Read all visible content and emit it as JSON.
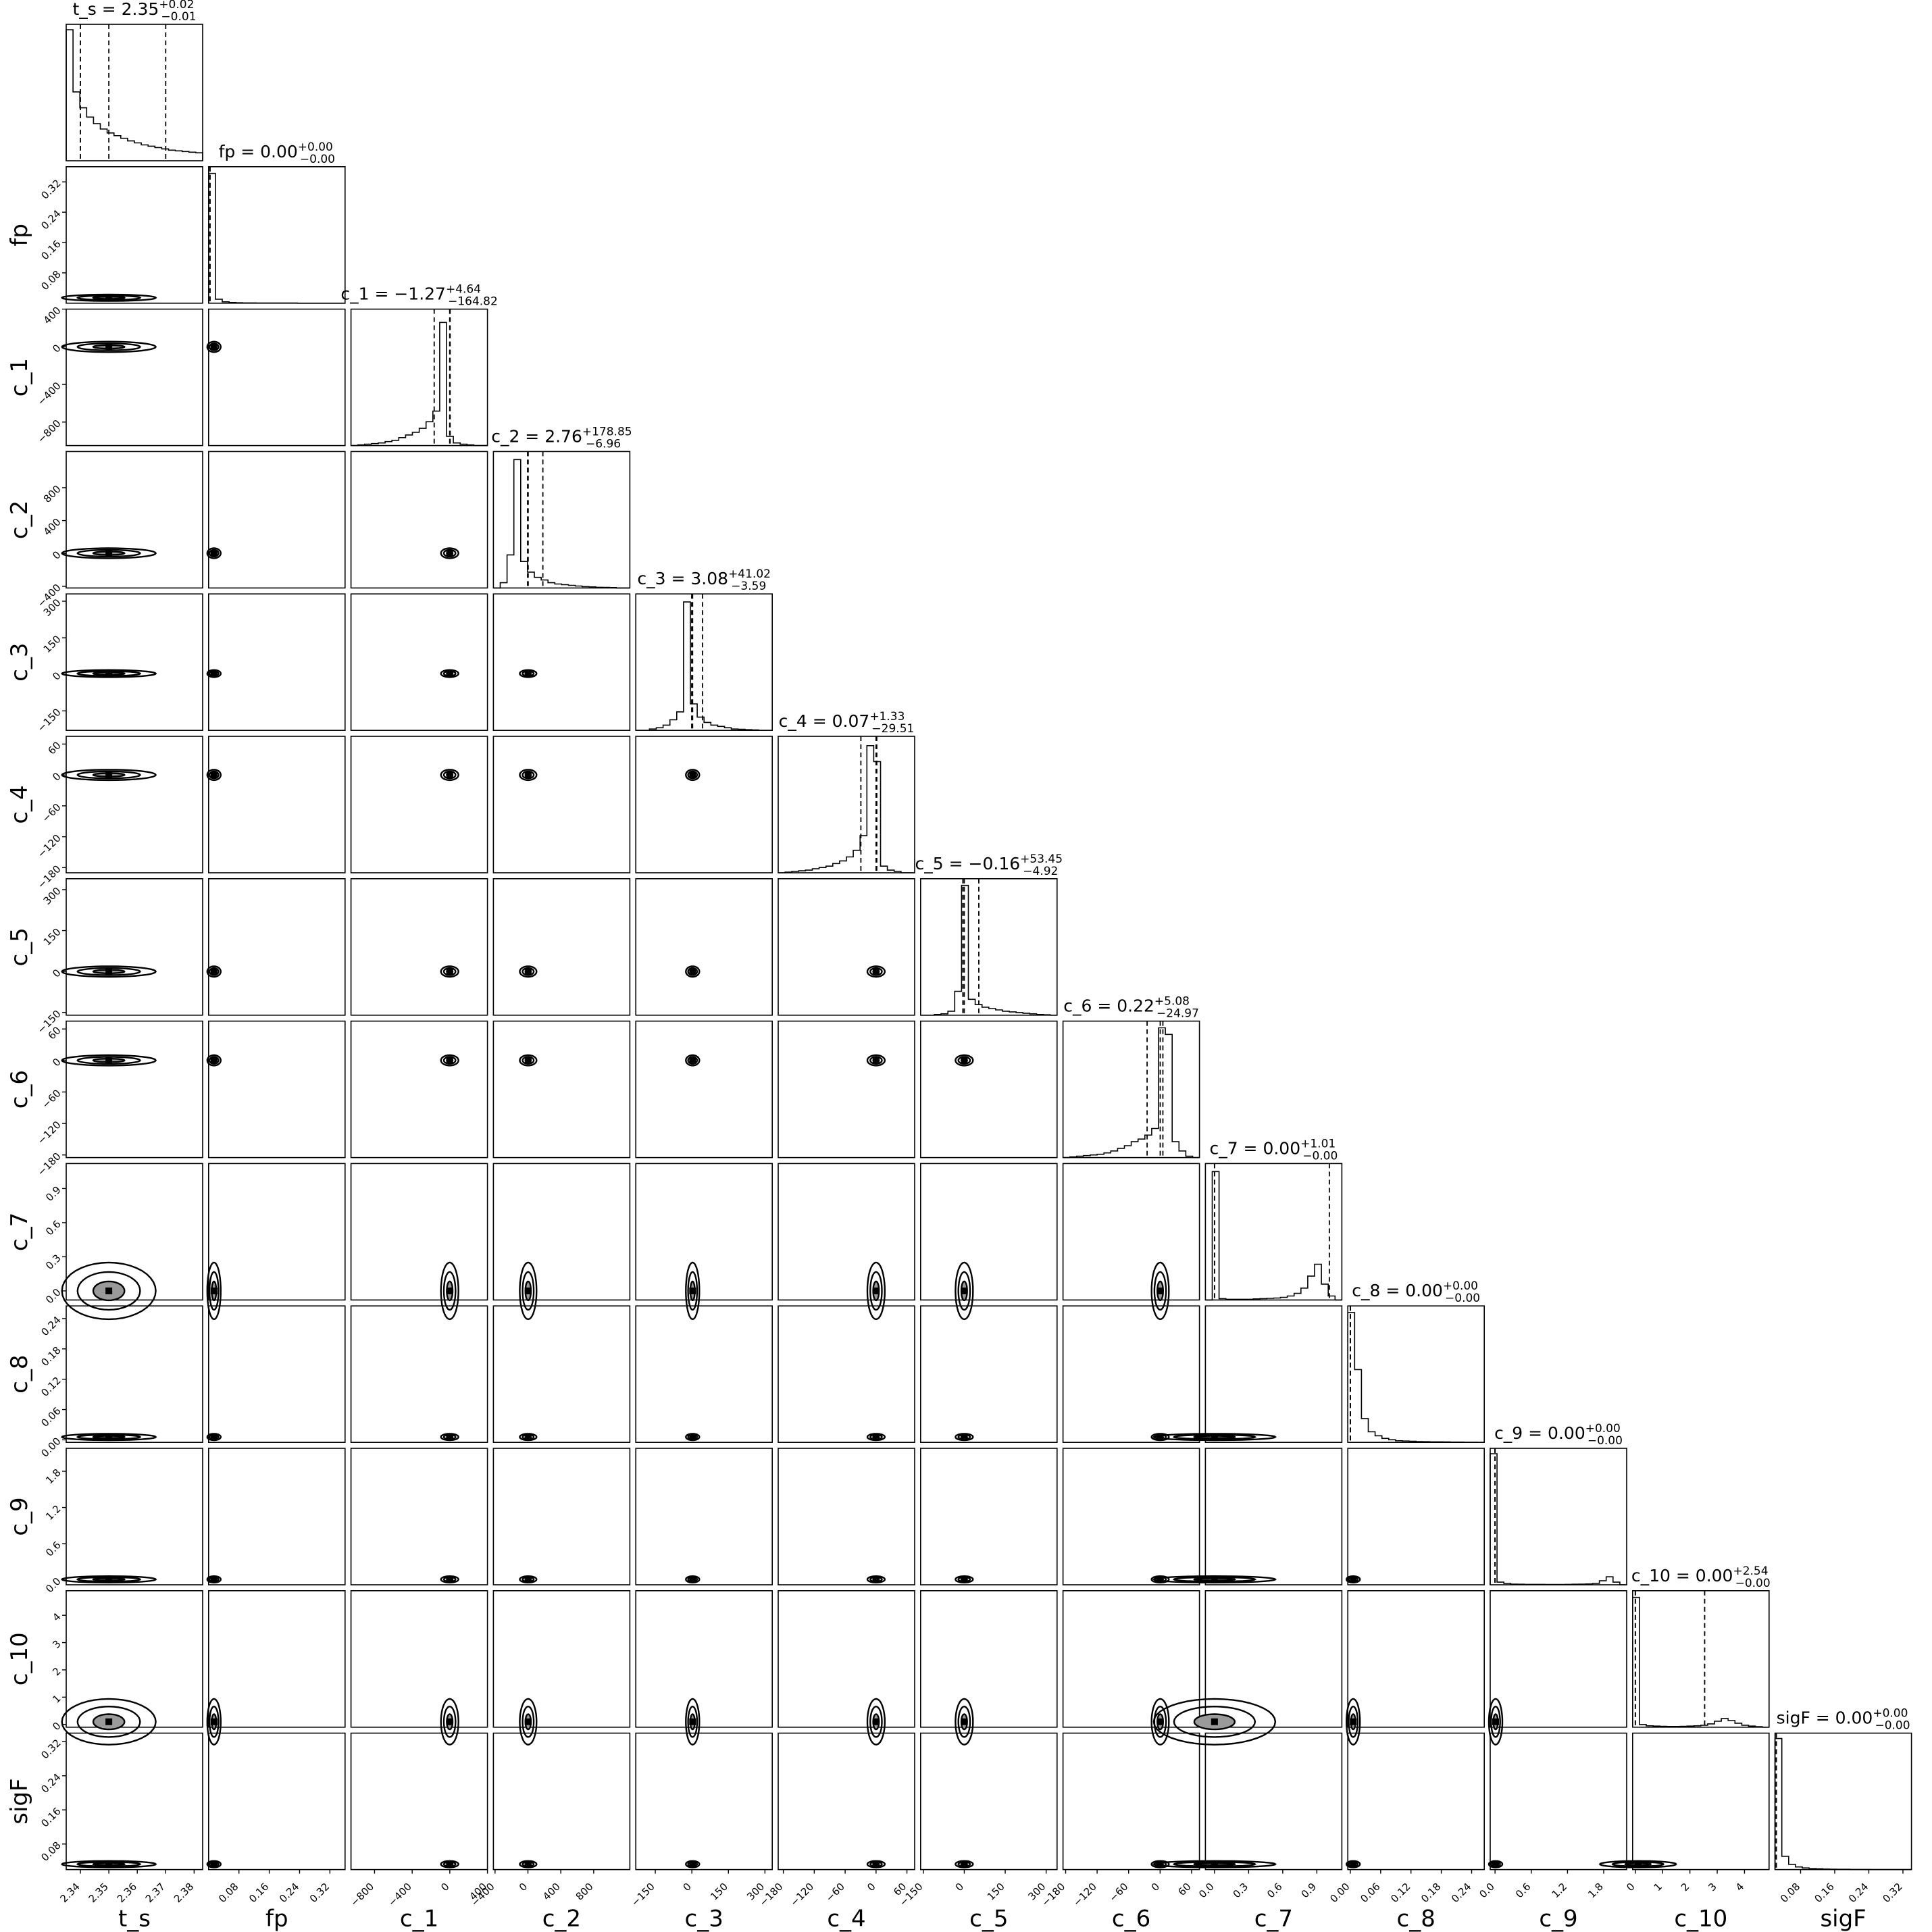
{
  "chart_data": {
    "type": "corner",
    "parameters": [
      "t_s",
      "fp",
      "c_1",
      "c_2",
      "c_3",
      "c_4",
      "c_5",
      "c_6",
      "c_7",
      "c_8",
      "c_9",
      "c_10",
      "sigF"
    ],
    "titles": [
      {
        "name": "t_s",
        "value": "2.35",
        "plus": "+0.02",
        "minus": "−0.01"
      },
      {
        "name": "fp",
        "value": "0.00",
        "plus": "+0.00",
        "minus": "−0.00"
      },
      {
        "name": "c_1",
        "value": "−1.27",
        "plus": "+4.64",
        "minus": "−164.82"
      },
      {
        "name": "c_2",
        "value": "2.76",
        "plus": "+178.85",
        "minus": "−6.96"
      },
      {
        "name": "c_3",
        "value": "3.08",
        "plus": "+41.02",
        "minus": "−3.59"
      },
      {
        "name": "c_4",
        "value": "0.07",
        "plus": "+1.33",
        "minus": "−29.51"
      },
      {
        "name": "c_5",
        "value": "−0.16",
        "plus": "+53.45",
        "minus": "−4.92"
      },
      {
        "name": "c_6",
        "value": "0.22",
        "plus": "+5.08",
        "minus": "−24.97"
      },
      {
        "name": "c_7",
        "value": "0.00",
        "plus": "+1.01",
        "minus": "−0.00"
      },
      {
        "name": "c_8",
        "value": "0.00",
        "plus": "+0.00",
        "minus": "−0.00"
      },
      {
        "name": "c_9",
        "value": "0.00",
        "plus": "+0.00",
        "minus": "−0.00"
      },
      {
        "name": "c_10",
        "value": "0.00",
        "plus": "+2.54",
        "minus": "−0.00"
      },
      {
        "name": "sigF",
        "value": "0.00",
        "plus": "+0.00",
        "minus": "−0.00"
      }
    ],
    "ranges": [
      [
        2.335,
        2.383
      ],
      [
        0.0,
        0.36
      ],
      [
        -1050,
        400
      ],
      [
        -420,
        1240
      ],
      [
        -230,
        330
      ],
      [
        -190,
        75
      ],
      [
        -160,
        340
      ],
      [
        -185,
        75
      ],
      [
        -0.08,
        1.12
      ],
      [
        -0.005,
        0.265
      ],
      [
        -0.08,
        2.18
      ],
      [
        -0.1,
        4.9
      ],
      [
        0.02,
        0.34
      ]
    ],
    "ticks": [
      {
        "values": [
          2.34,
          2.35,
          2.36,
          2.37,
          2.38
        ],
        "labels": [
          "2.34",
          "2.35",
          "2.36",
          "2.37",
          "2.38"
        ]
      },
      {
        "values": [
          0.08,
          0.16,
          0.24,
          0.32
        ],
        "labels": [
          "0.08",
          "0.16",
          "0.24",
          "0.32"
        ]
      },
      {
        "values": [
          -800,
          -400,
          0,
          400
        ],
        "labels": [
          "−800",
          "−400",
          "0",
          "400"
        ]
      },
      {
        "values": [
          -400,
          0,
          400,
          800
        ],
        "labels": [
          "−400",
          "0",
          "400",
          "800"
        ]
      },
      {
        "values": [
          -150,
          0,
          150,
          300
        ],
        "labels": [
          "−150",
          "0",
          "150",
          "300"
        ]
      },
      {
        "values": [
          -180,
          -120,
          -60,
          0,
          60
        ],
        "labels": [
          "−180",
          "−120",
          "−60",
          "0",
          "60"
        ]
      },
      {
        "values": [
          -150,
          0,
          150,
          300
        ],
        "labels": [
          "−150",
          "0",
          "150",
          "300"
        ]
      },
      {
        "values": [
          -180,
          -120,
          -60,
          0,
          60
        ],
        "labels": [
          "−180",
          "−120",
          "−60",
          "0",
          "60"
        ]
      },
      {
        "values": [
          0.0,
          0.3,
          0.6,
          0.9
        ],
        "labels": [
          "0.0",
          "0.3",
          "0.6",
          "0.9"
        ]
      },
      {
        "values": [
          0.0,
          0.06,
          0.12,
          0.18,
          0.24
        ],
        "labels": [
          "0.00",
          "0.06",
          "0.12",
          "0.18",
          "0.24"
        ]
      },
      {
        "values": [
          0.0,
          0.6,
          1.2,
          1.8
        ],
        "labels": [
          "0.0",
          "0.6",
          "1.2",
          "1.8"
        ]
      },
      {
        "values": [
          0,
          1,
          2,
          3,
          4
        ],
        "labels": [
          "0",
          "1",
          "2",
          "3",
          "4"
        ]
      },
      {
        "values": [
          0.08,
          0.16,
          0.24,
          0.32
        ],
        "labels": [
          "0.08",
          "0.16",
          "0.24",
          "0.32"
        ]
      }
    ],
    "quantiles": [
      [
        2.34,
        2.35,
        2.37
      ],
      [
        0.0,
        0.0,
        0.0
      ],
      [
        -166.09,
        -1.27,
        3.37
      ],
      [
        -4.2,
        2.76,
        181.61
      ],
      [
        -0.51,
        3.08,
        44.1
      ],
      [
        -29.44,
        0.07,
        1.4
      ],
      [
        -5.08,
        -0.16,
        53.29
      ],
      [
        -24.75,
        0.22,
        5.3
      ],
      [
        0.0,
        0.0,
        1.01
      ],
      [
        0.0,
        0.0,
        0.0
      ],
      [
        0.0,
        0.0,
        0.0
      ],
      [
        0.0,
        0.0,
        2.54
      ],
      [
        0.0,
        0.0,
        0.0
      ]
    ],
    "histograms": [
      [
        0.99,
        0.52,
        0.4,
        0.33,
        0.28,
        0.24,
        0.21,
        0.19,
        0.17,
        0.15,
        0.135,
        0.12,
        0.11,
        0.1,
        0.09,
        0.08,
        0.075,
        0.07,
        0.065,
        0.06
      ],
      [
        0.98,
        0.03,
        0.01,
        0.005,
        0.003,
        0.002,
        0.002,
        0.001,
        0.001,
        0.001,
        0.001,
        0.001,
        0.001,
        0.0,
        0.0,
        0.0,
        0.0,
        0.0,
        0.0,
        0.0
      ],
      [
        0.0,
        0.005,
        0.01,
        0.015,
        0.02,
        0.03,
        0.04,
        0.06,
        0.08,
        0.1,
        0.13,
        0.18,
        0.26,
        0.93,
        0.07,
        0.02,
        0.01,
        0.005,
        0.0,
        0.0
      ],
      [
        0.0,
        0.04,
        0.25,
        0.97,
        0.2,
        0.12,
        0.08,
        0.06,
        0.04,
        0.03,
        0.025,
        0.02,
        0.015,
        0.01,
        0.008,
        0.005,
        0.004,
        0.003,
        0.0,
        0.0
      ],
      [
        0.0,
        0.0,
        0.01,
        0.02,
        0.04,
        0.08,
        0.14,
        0.97,
        0.2,
        0.1,
        0.06,
        0.04,
        0.03,
        0.02,
        0.01,
        0.008,
        0.005,
        0.003,
        0.0,
        0.0
      ],
      [
        0.0,
        0.005,
        0.01,
        0.015,
        0.02,
        0.03,
        0.04,
        0.05,
        0.07,
        0.09,
        0.12,
        0.17,
        0.28,
        0.96,
        0.84,
        0.05,
        0.02,
        0.01,
        0.0,
        0.0
      ],
      [
        0.0,
        0.0,
        0.005,
        0.01,
        0.03,
        0.18,
        0.98,
        0.12,
        0.08,
        0.06,
        0.05,
        0.04,
        0.03,
        0.025,
        0.02,
        0.015,
        0.01,
        0.005,
        0.003,
        0.0
      ],
      [
        0.0,
        0.005,
        0.01,
        0.015,
        0.02,
        0.025,
        0.035,
        0.05,
        0.07,
        0.09,
        0.12,
        0.14,
        0.17,
        0.22,
        0.98,
        0.93,
        0.12,
        0.05,
        0.01,
        0.0
      ],
      [
        0.0,
        0.97,
        0.01,
        0.005,
        0.005,
        0.005,
        0.005,
        0.008,
        0.01,
        0.012,
        0.015,
        0.02,
        0.03,
        0.05,
        0.09,
        0.18,
        0.27,
        0.12,
        0.03,
        0.0
      ],
      [
        0.98,
        0.55,
        0.18,
        0.08,
        0.05,
        0.03,
        0.02,
        0.012,
        0.01,
        0.008,
        0.006,
        0.005,
        0.004,
        0.004,
        0.003,
        0.002,
        0.002,
        0.001,
        0.001,
        0.0
      ],
      [
        0.99,
        0.02,
        0.01,
        0.005,
        0.004,
        0.003,
        0.003,
        0.003,
        0.002,
        0.002,
        0.002,
        0.003,
        0.004,
        0.005,
        0.006,
        0.01,
        0.03,
        0.06,
        0.02,
        0.0
      ],
      [
        0.98,
        0.02,
        0.01,
        0.008,
        0.006,
        0.005,
        0.005,
        0.006,
        0.008,
        0.01,
        0.015,
        0.025,
        0.045,
        0.065,
        0.05,
        0.03,
        0.015,
        0.008,
        0.004,
        0.0
      ],
      [
        0.99,
        0.1,
        0.04,
        0.02,
        0.012,
        0.008,
        0.006,
        0.004,
        0.003,
        0.002,
        0.002,
        0.001,
        0.001,
        0.001,
        0.0,
        0.0,
        0.0,
        0.0,
        0.0,
        0.0
      ]
    ],
    "contour_levels": 3,
    "grid": false,
    "title": "",
    "xlabel": "",
    "ylabel": ""
  }
}
